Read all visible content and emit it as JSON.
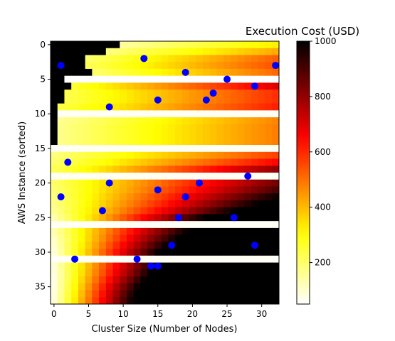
{
  "chart_data": {
    "type": "heatmap",
    "title": "Execution Cost (USD)",
    "xlabel": "Cluster Size (Number of Nodes)",
    "ylabel": "AWS Instance (sorted)",
    "x_range": [
      -0.5,
      32.5
    ],
    "y_range": [
      37.5,
      -0.5
    ],
    "x_ticks": [
      0,
      5,
      10,
      15,
      20,
      25,
      30
    ],
    "y_ticks": [
      0,
      5,
      10,
      15,
      20,
      25,
      30,
      35
    ],
    "colorbar": {
      "colormap": "hot_r",
      "range": [
        50,
        1000
      ],
      "ticks": [
        200,
        400,
        600,
        800,
        1000
      ]
    },
    "grid": false,
    "heatmap_rows": 38,
    "heatmap_columns": 33,
    "heatmap_row_profiles": {
      "note": "per-row [minimum visible column, base cost, cost growth per column]",
      "rows": [
        [
          10,
          150,
          8
        ],
        [
          8,
          180,
          10
        ],
        [
          5,
          200,
          12
        ],
        [
          5,
          220,
          12
        ],
        [
          6,
          200,
          12
        ],
        [
          2,
          50,
          0
        ],
        [
          3,
          260,
          15
        ],
        [
          2,
          230,
          12
        ],
        [
          2,
          230,
          12
        ],
        [
          1,
          240,
          12
        ],
        [
          1,
          60,
          0
        ],
        [
          1,
          160,
          10
        ],
        [
          1,
          170,
          10
        ],
        [
          1,
          170,
          10
        ],
        [
          1,
          170,
          10
        ],
        [
          0,
          60,
          0
        ],
        [
          0,
          180,
          12
        ],
        [
          0,
          200,
          14
        ],
        [
          0,
          220,
          18
        ],
        [
          0,
          60,
          0
        ],
        [
          0,
          200,
          20
        ],
        [
          0,
          190,
          22
        ],
        [
          0,
          180,
          25
        ],
        [
          0,
          170,
          28
        ],
        [
          0,
          160,
          32
        ],
        [
          0,
          130,
          40
        ],
        [
          0,
          60,
          0
        ],
        [
          0,
          130,
          45
        ],
        [
          0,
          110,
          50
        ],
        [
          0,
          100,
          55
        ],
        [
          0,
          90,
          60
        ],
        [
          0,
          60,
          0
        ],
        [
          0,
          90,
          62
        ],
        [
          0,
          85,
          65
        ],
        [
          0,
          80,
          70
        ],
        [
          0,
          80,
          75
        ],
        [
          0,
          85,
          78
        ],
        [
          0,
          90,
          80
        ]
      ]
    },
    "points": [
      {
        "x": 13,
        "y": 2
      },
      {
        "x": 1,
        "y": 3
      },
      {
        "x": 32,
        "y": 3
      },
      {
        "x": 19,
        "y": 4
      },
      {
        "x": 25,
        "y": 5
      },
      {
        "x": 29,
        "y": 6
      },
      {
        "x": 23,
        "y": 7
      },
      {
        "x": 15,
        "y": 8
      },
      {
        "x": 22,
        "y": 8
      },
      {
        "x": 8,
        "y": 9
      },
      {
        "x": 2,
        "y": 17
      },
      {
        "x": 28,
        "y": 19
      },
      {
        "x": 8,
        "y": 20
      },
      {
        "x": 21,
        "y": 20
      },
      {
        "x": 15,
        "y": 21
      },
      {
        "x": 1,
        "y": 22
      },
      {
        "x": 19,
        "y": 22
      },
      {
        "x": 7,
        "y": 24
      },
      {
        "x": 18,
        "y": 25
      },
      {
        "x": 26,
        "y": 25
      },
      {
        "x": 17,
        "y": 29
      },
      {
        "x": 29,
        "y": 29
      },
      {
        "x": 3,
        "y": 31
      },
      {
        "x": 12,
        "y": 31
      },
      {
        "x": 14,
        "y": 32
      },
      {
        "x": 15,
        "y": 32
      }
    ],
    "point_color": "#0000ff"
  }
}
